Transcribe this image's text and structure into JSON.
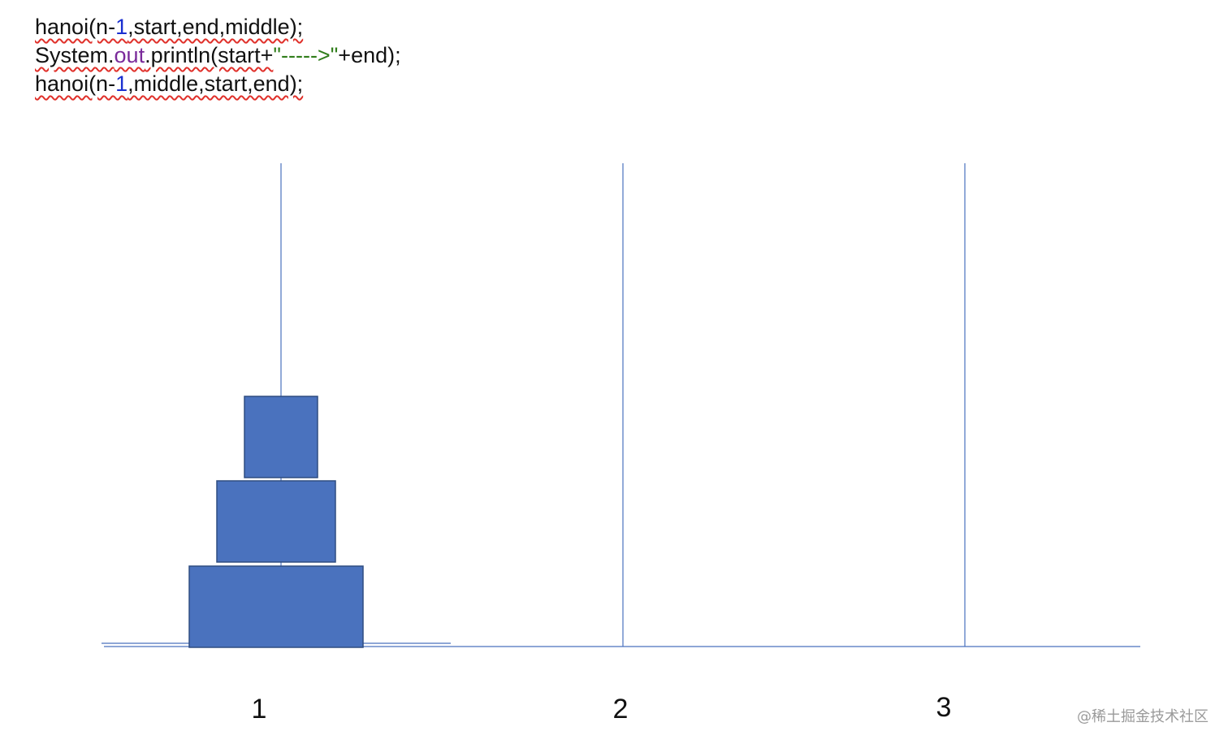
{
  "code": [
    [
      "hanoi(n-",
      "1",
      ",start,end,middle);"
    ],
    [
      "System.",
      "out",
      ".println(start+",
      "\"----->\"",
      "+end);"
    ],
    [
      "hanoi(n-",
      "1",
      ",middle,start,end);"
    ]
  ],
  "poles": [
    {
      "label": "1"
    },
    {
      "label": "2"
    },
    {
      "label": "3"
    }
  ],
  "watermark": "@稀土掘金技术社区"
}
